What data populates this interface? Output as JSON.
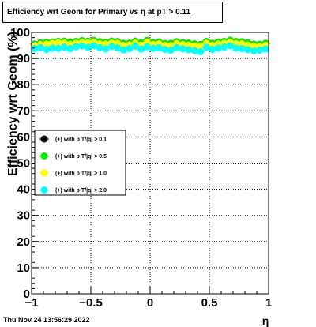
{
  "title": "Efficiency wrt Geom for Primary vs   η at pT > 0.11",
  "timestamp": "Thu Nov 24 13:56:29 2022",
  "chart_data": {
    "type": "scatter",
    "xlabel": "η",
    "ylabel": "Efficiency wrt Geom (%)",
    "xlim": [
      -1,
      1
    ],
    "ylim": [
      0,
      100
    ],
    "x_ticks": [
      -1,
      -0.5,
      0,
      0.5,
      1
    ],
    "x_tick_labels": [
      "−1",
      "−0.5",
      "0",
      "0.5",
      "1"
    ],
    "y_ticks": [
      0,
      10,
      20,
      30,
      40,
      50,
      60,
      70,
      80,
      90,
      100
    ],
    "grid": true,
    "legend_position": "left-middle",
    "x": [
      -0.975,
      -0.925,
      -0.875,
      -0.825,
      -0.775,
      -0.725,
      -0.675,
      -0.625,
      -0.575,
      -0.525,
      -0.475,
      -0.425,
      -0.375,
      -0.325,
      -0.275,
      -0.225,
      -0.175,
      -0.125,
      -0.075,
      -0.025,
      0.025,
      0.075,
      0.125,
      0.175,
      0.225,
      0.275,
      0.325,
      0.375,
      0.425,
      0.475,
      0.525,
      0.575,
      0.625,
      0.675,
      0.725,
      0.775,
      0.825,
      0.875,
      0.925,
      0.975
    ],
    "series": [
      {
        "name": "(+) with p T/|q| > 0.1",
        "color": "#000000",
        "values": [
          95.5,
          96.0,
          96.2,
          96.3,
          96.5,
          96.6,
          96.3,
          96.5,
          96.8,
          96.6,
          96.9,
          96.4,
          96.2,
          96.6,
          96.5,
          95.8,
          95.9,
          96.6,
          96.0,
          96.9,
          96.1,
          96.3,
          95.7,
          95.8,
          96.4,
          96.1,
          95.9,
          95.6,
          95.3,
          96.5,
          95.8,
          96.3,
          96.5,
          97.0,
          96.5,
          96.4,
          96.0,
          95.5,
          95.4,
          95.8
        ]
      },
      {
        "name": "(+) with p T/|q| > 0.5",
        "color": "#00ee00",
        "values": [
          95.5,
          96.0,
          96.2,
          96.3,
          96.5,
          96.6,
          96.3,
          96.5,
          96.8,
          96.6,
          96.9,
          96.4,
          96.2,
          96.6,
          96.5,
          95.8,
          95.9,
          96.6,
          96.0,
          96.9,
          96.1,
          96.3,
          95.7,
          95.8,
          96.4,
          96.1,
          95.9,
          95.6,
          95.3,
          96.5,
          95.8,
          96.3,
          96.5,
          97.0,
          96.5,
          96.4,
          96.0,
          95.5,
          95.4,
          95.8
        ]
      },
      {
        "name": "(+) with p T/|q| > 1.0",
        "color": "#ffff00",
        "values": [
          95.0,
          95.3,
          95.5,
          95.8,
          96.0,
          95.9,
          95.4,
          95.8,
          96.1,
          96.0,
          96.2,
          95.6,
          95.5,
          95.9,
          95.8,
          95.0,
          95.2,
          95.9,
          95.1,
          96.2,
          95.4,
          95.6,
          95.0,
          94.9,
          95.7,
          95.3,
          95.1,
          94.8,
          94.6,
          95.8,
          95.0,
          95.5,
          95.8,
          96.2,
          95.7,
          95.6,
          95.1,
          94.7,
          94.6,
          95.0
        ]
      },
      {
        "name": "(+) with p T/|q| > 2.0",
        "color": "#00ffff",
        "values": [
          93.8,
          94.2,
          93.5,
          94.0,
          93.9,
          94.4,
          93.8,
          94.5,
          94.8,
          94.3,
          94.9,
          94.2,
          93.7,
          94.6,
          94.1,
          93.3,
          93.8,
          94.7,
          93.6,
          94.5,
          93.9,
          94.1,
          93.5,
          93.2,
          94.2,
          93.7,
          93.4,
          93.0,
          92.6,
          94.3,
          93.5,
          94.0,
          94.4,
          94.9,
          94.0,
          93.8,
          93.4,
          92.9,
          93.2,
          93.6
        ]
      }
    ]
  }
}
